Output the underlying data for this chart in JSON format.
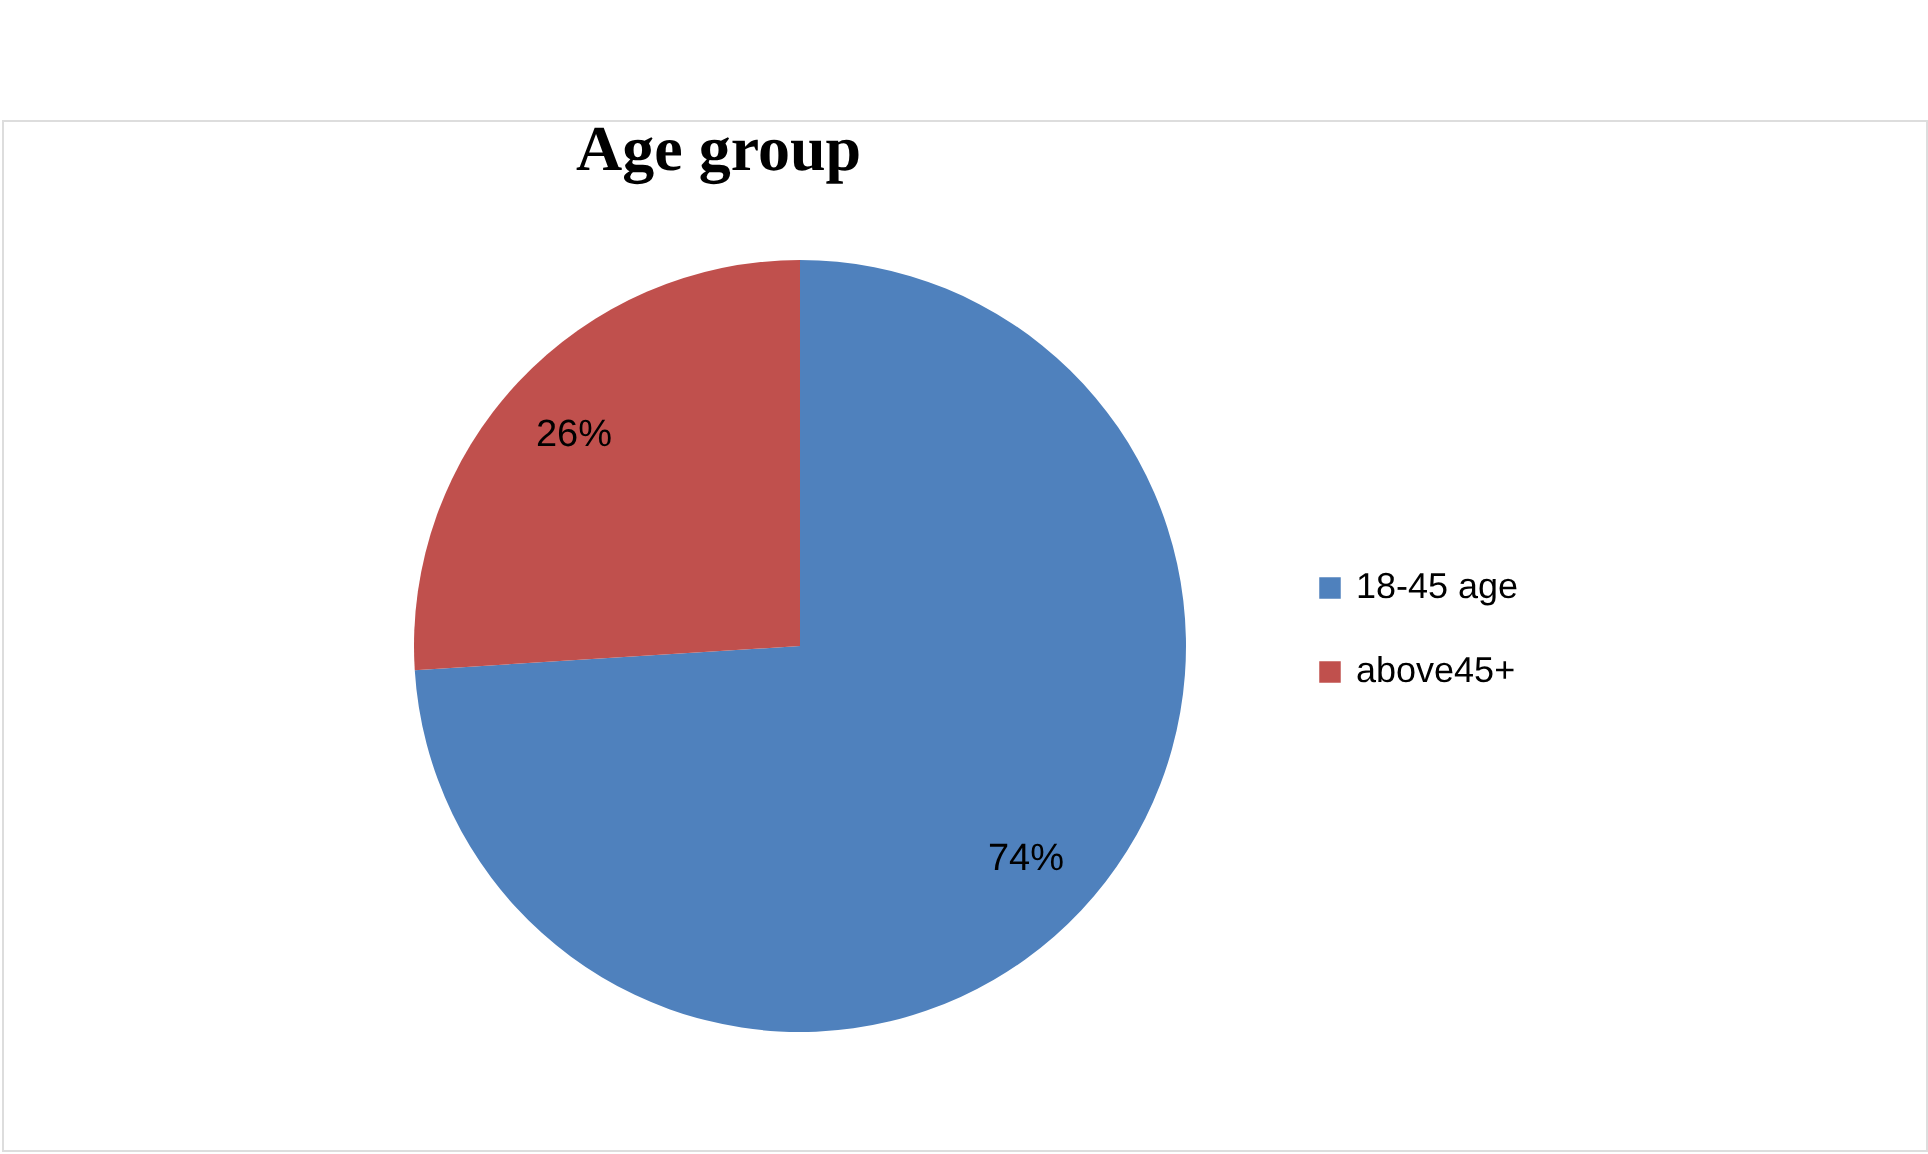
{
  "chart_data": {
    "type": "pie",
    "title": "Age group",
    "categories": [
      "18-45 age",
      "above45+"
    ],
    "values": [
      74,
      26
    ],
    "colors": [
      "#4f81bd",
      "#c0504d"
    ],
    "value_labels": [
      "74%",
      "26%"
    ],
    "legend": "right"
  }
}
